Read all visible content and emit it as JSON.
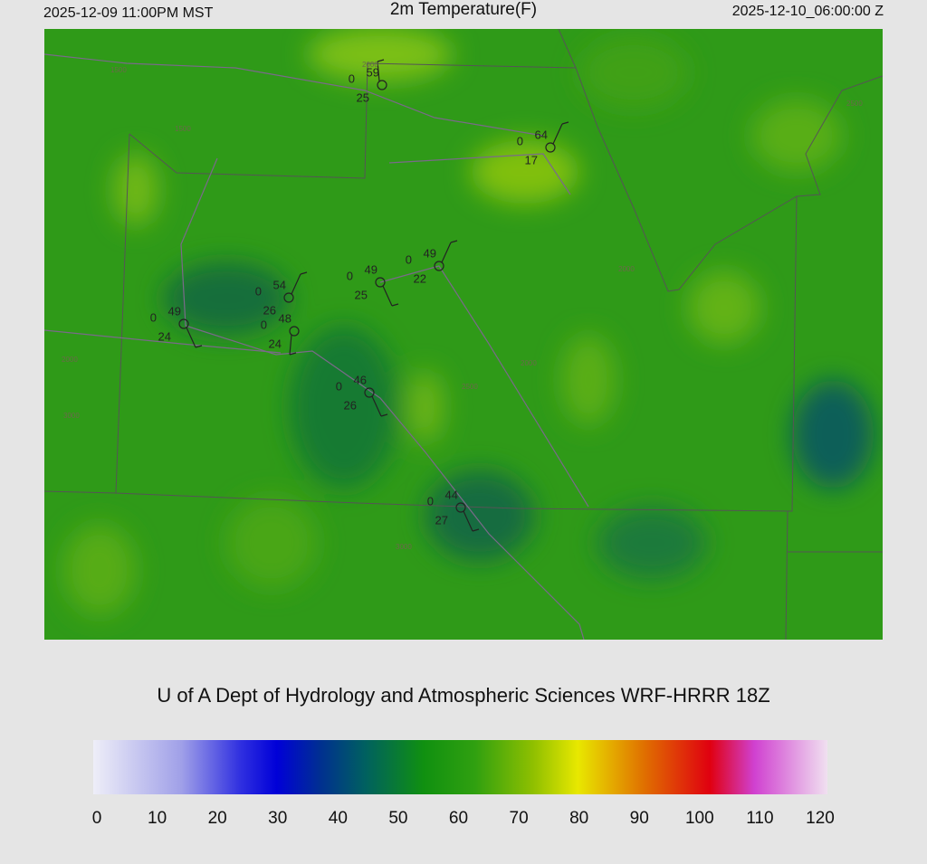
{
  "header": {
    "left": "2025-12-09 11:00PM MST",
    "title": "2m Temperature(F)",
    "right": "2025-12-10_06:00:00 Z"
  },
  "stations": [
    {
      "temp": 59,
      "mid": 0,
      "dew": 25
    },
    {
      "temp": 64,
      "mid": 0,
      "dew": 17
    },
    {
      "temp": 49,
      "mid": 0,
      "dew": 22
    },
    {
      "temp": 49,
      "mid": 0,
      "dew": 25
    },
    {
      "temp": 54,
      "mid": 0,
      "dew": 26
    },
    {
      "temp": 48,
      "mid": 0,
      "dew": 24
    },
    {
      "temp": 49,
      "mid": 0,
      "dew": 24
    },
    {
      "temp": 46,
      "mid": 0,
      "dew": 26
    },
    {
      "temp": 44,
      "mid": 0,
      "dew": 27
    }
  ],
  "contour_labels": [
    "1500",
    "1500",
    "2000",
    "2000",
    "2000",
    "2000",
    "2500",
    "3000",
    "3000",
    "2500"
  ],
  "footer": "U of A Dept of Hydrology and Atmospheric Sciences WRF-HRRR 18Z",
  "colorbar": {
    "lim": [
      0,
      120
    ],
    "ticks": [
      0,
      10,
      20,
      30,
      40,
      50,
      60,
      70,
      80,
      90,
      100,
      110,
      120
    ]
  }
}
